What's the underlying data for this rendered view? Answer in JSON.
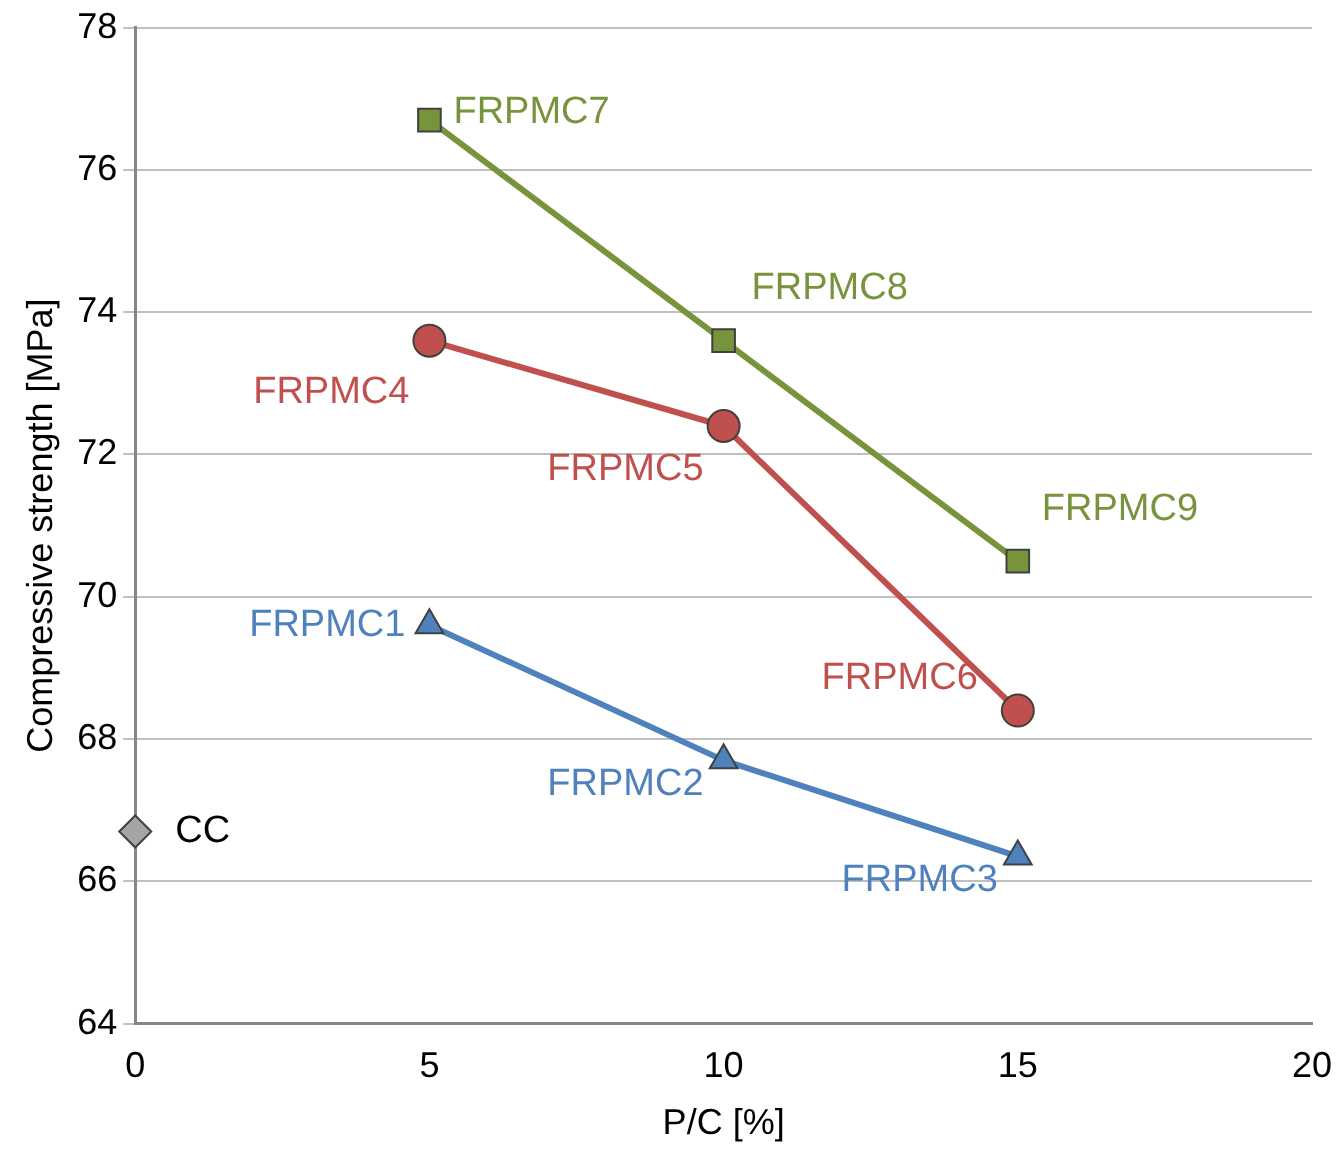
{
  "chart_data": {
    "type": "line",
    "xlabel": "P/C [%]",
    "ylabel": "Compressive strength [MPa]",
    "xlim": [
      0,
      20
    ],
    "xticks": [
      0,
      5,
      10,
      15,
      20
    ],
    "ylim": [
      64,
      78
    ],
    "yticks": [
      64,
      66,
      68,
      70,
      72,
      74,
      76,
      78
    ],
    "grid": "y",
    "legend": false,
    "series": [
      {
        "type": "scatter",
        "marker": "diamond",
        "color": "#a5a5a5",
        "x": [
          0
        ],
        "values": [
          66.7
        ]
      },
      {
        "type": "line",
        "marker": "triangle",
        "color": "#4f81bd",
        "x": [
          5,
          10,
          15
        ],
        "values": [
          69.6,
          67.7,
          66.35
        ]
      },
      {
        "type": "line",
        "marker": "circle",
        "color": "#c0504d",
        "x": [
          5,
          10,
          15
        ],
        "values": [
          73.6,
          72.4,
          68.4
        ]
      },
      {
        "type": "line",
        "marker": "square",
        "color": "#77933c",
        "x": [
          5,
          10,
          15
        ],
        "values": [
          76.7,
          73.6,
          70.5
        ]
      }
    ],
    "annotations": [
      {
        "text": "CC",
        "x": 0,
        "y": 66.7
      },
      {
        "text": "FRPMC1",
        "x": 5,
        "y": 69.6
      },
      {
        "text": "FRPMC2",
        "x": 10,
        "y": 67.7
      },
      {
        "text": "FRPMC3",
        "x": 15,
        "y": 66.35
      },
      {
        "text": "FRPMC4",
        "x": 5,
        "y": 73.6
      },
      {
        "text": "FRPMC5",
        "x": 10,
        "y": 72.4
      },
      {
        "text": "FRPMC6",
        "x": 15,
        "y": 68.4
      },
      {
        "text": "FRPMC7",
        "x": 5,
        "y": 76.7
      },
      {
        "text": "FRPMC8",
        "x": 10,
        "y": 73.6
      },
      {
        "text": "FRPMC9",
        "x": 15,
        "y": 70.5
      }
    ]
  }
}
